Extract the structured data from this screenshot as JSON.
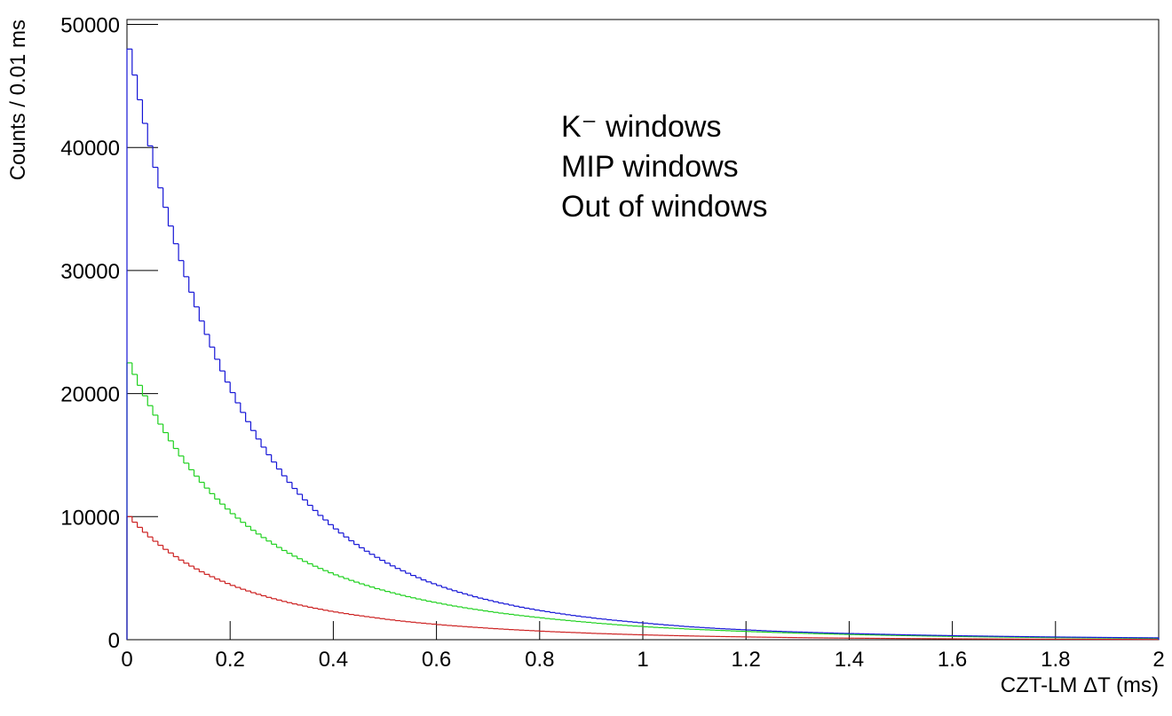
{
  "chart_data": {
    "type": "histogram",
    "x_label": "CZT-LM ΔT (ms)",
    "y_label": "Counts / 0.01 ms",
    "xlim": [
      0,
      2
    ],
    "ylim": [
      0,
      50400
    ],
    "xticks": [
      0,
      0.2,
      0.4,
      0.6,
      0.8,
      1,
      1.2,
      1.4,
      1.6,
      1.8,
      2
    ],
    "yticks": [
      0,
      10000,
      20000,
      30000,
      40000,
      50000
    ],
    "legend": "upper-center",
    "bins": [
      0,
      0.01,
      0.02,
      0.03,
      0.04,
      0.05,
      0.06,
      0.07,
      0.08,
      0.09,
      0.1,
      0.11,
      0.12,
      0.13,
      0.14,
      0.15,
      0.16,
      0.17,
      0.18,
      0.19,
      0.2,
      0.21,
      0.22,
      0.23,
      0.24,
      0.25,
      0.26,
      0.27,
      0.28,
      0.29,
      0.3,
      0.31,
      0.32,
      0.33,
      0.34,
      0.35,
      0.36,
      0.37,
      0.38,
      0.39,
      0.4,
      0.41,
      0.42,
      0.43,
      0.44,
      0.45,
      0.46,
      0.47,
      0.48,
      0.49,
      0.5,
      0.51,
      0.52,
      0.53,
      0.54,
      0.55,
      0.56,
      0.57,
      0.58,
      0.59,
      0.6,
      0.61,
      0.62,
      0.63,
      0.64,
      0.65,
      0.66,
      0.67,
      0.68,
      0.69,
      0.7,
      0.71,
      0.72,
      0.73,
      0.74,
      0.75,
      0.76,
      0.77,
      0.78,
      0.79,
      0.8,
      0.81,
      0.82,
      0.83,
      0.84,
      0.85,
      0.86,
      0.87,
      0.88,
      0.89,
      0.9,
      0.91,
      0.92,
      0.93,
      0.94,
      0.95,
      0.96,
      0.97,
      0.98,
      0.99,
      1,
      1.01,
      1.02,
      1.03,
      1.04,
      1.05,
      1.06,
      1.07,
      1.08,
      1.09,
      1.1,
      1.11,
      1.12,
      1.13,
      1.14,
      1.15,
      1.16,
      1.17,
      1.18,
      1.19,
      1.2,
      1.21,
      1.22,
      1.23,
      1.24,
      1.25,
      1.26,
      1.27,
      1.28,
      1.29,
      1.3,
      1.31,
      1.32,
      1.33,
      1.34,
      1.35,
      1.36,
      1.37,
      1.38,
      1.39,
      1.4,
      1.41,
      1.42,
      1.43,
      1.44,
      1.45,
      1.46,
      1.47,
      1.48,
      1.49,
      1.5,
      1.51,
      1.52,
      1.53,
      1.54,
      1.55,
      1.56,
      1.57,
      1.58,
      1.59,
      1.6,
      1.61,
      1.62,
      1.63,
      1.64,
      1.65,
      1.66,
      1.67,
      1.68,
      1.69,
      1.7,
      1.71,
      1.72,
      1.73,
      1.74,
      1.75,
      1.76,
      1.77,
      1.78,
      1.79,
      1.8,
      1.81,
      1.82,
      1.83,
      1.84,
      1.85,
      1.86,
      1.87,
      1.88,
      1.89,
      1.9,
      1.91,
      1.92,
      1.93,
      1.94,
      1.95,
      1.96,
      1.97,
      1.98,
      1.99,
      2
    ],
    "series": [
      {
        "name": "K⁻ windows",
        "color": "#cc1f1f",
        "values": [
          10000,
          9550,
          9130,
          8730,
          8350,
          8000,
          7670,
          7340,
          7050,
          6750,
          6470,
          6220,
          5980,
          5750,
          5520,
          5310,
          5120,
          4930,
          4750,
          4570,
          4410,
          4250,
          4100,
          3960,
          3820,
          3690,
          3570,
          3440,
          3330,
          3220,
          3110,
          3010,
          2910,
          2820,
          2730,
          2640,
          2555,
          2480,
          2395,
          2320,
          2250,
          2180,
          2120,
          2050,
          1990,
          1935,
          1875,
          1820,
          1765,
          1710,
          1650,
          1605,
          1550,
          1505,
          1460,
          1420,
          1375,
          1340,
          1300,
          1265,
          1225,
          1190,
          1155,
          1125,
          1095,
          1065,
          1035,
          1005,
          980,
          950,
          920,
          895,
          870,
          845,
          820,
          800,
          775,
          755,
          735,
          715,
          690,
          670,
          650,
          635,
          615,
          600,
          585,
          570,
          550,
          535,
          515,
          500,
          490,
          475,
          460,
          450,
          435,
          425,
          410,
          400,
          389,
          378,
          368,
          357,
          348,
          338,
          329,
          320,
          311,
          302,
          293,
          285,
          277,
          270,
          262,
          255,
          248,
          241,
          235,
          228,
          221,
          215,
          209,
          204,
          198,
          193,
          187,
          182,
          177,
          172,
          167,
          163,
          158,
          154,
          150,
          145,
          141,
          137,
          134,
          130,
          126,
          123,
          120,
          116,
          113,
          110,
          107,
          104,
          101,
          98,
          95,
          93,
          90,
          88,
          85,
          83,
          81,
          78,
          76,
          74,
          72,
          70,
          68,
          66,
          64,
          63,
          61,
          59,
          58,
          56,
          54,
          53,
          51,
          50,
          49,
          47,
          46,
          45,
          44,
          42,
          41,
          40,
          39,
          38,
          37,
          36,
          35,
          34,
          33,
          32,
          31,
          30,
          29,
          28,
          28,
          27,
          26,
          25,
          25,
          24
        ]
      },
      {
        "name": "MIP windows",
        "color": "#1fd11f",
        "values": [
          22500,
          21560,
          20670,
          19820,
          19020,
          18250,
          17520,
          16830,
          16160,
          15540,
          14930,
          14350,
          13810,
          13290,
          12790,
          12320,
          11870,
          11430,
          11020,
          10620,
          10240,
          9880,
          9540,
          9210,
          8890,
          8590,
          8300,
          8020,
          7760,
          7500,
          7250,
          7020,
          6790,
          6580,
          6360,
          6170,
          5970,
          5790,
          5610,
          5440,
          5270,
          5120,
          4970,
          4820,
          4680,
          4540,
          4410,
          4280,
          4150,
          4040,
          3920,
          3815,
          3700,
          3600,
          3500,
          3405,
          3310,
          3225,
          3130,
          3050,
          2970,
          2890,
          2810,
          2735,
          2670,
          2595,
          2530,
          2465,
          2405,
          2340,
          2280,
          2220,
          2160,
          2110,
          2060,
          2005,
          1955,
          1910,
          1860,
          1815,
          1770,
          1720,
          1680,
          1640,
          1600,
          1560,
          1520,
          1480,
          1445,
          1410,
          1370,
          1330,
          1300,
          1270,
          1230,
          1200,
          1170,
          1140,
          1110,
          1090,
          1050,
          1030,
          1000,
          980,
          960,
          940,
          920,
          900,
          870,
          850,
          835,
          815,
          800,
          780,
          760,
          745,
          730,
          710,
          695,
          680,
          664,
          650,
          635,
          620,
          605,
          590,
          580,
          565,
          555,
          540,
          527,
          515,
          505,
          490,
          480,
          470,
          460,
          450,
          440,
          430,
          419,
          410,
          400,
          390,
          383,
          374,
          365,
          357,
          349,
          341,
          333,
          326,
          318,
          311,
          304,
          297,
          290,
          284,
          277,
          271,
          264,
          258,
          253,
          247,
          241,
          236,
          231,
          225,
          220,
          215,
          210,
          205,
          201,
          196,
          192,
          187,
          183,
          179,
          175,
          171,
          167,
          163,
          160,
          156,
          153,
          149,
          146,
          143,
          139,
          136,
          133,
          130,
          127,
          124,
          122,
          119,
          116,
          114,
          111,
          109
        ]
      },
      {
        "name": "Out of windows",
        "color": "#1414d6",
        "values": [
          48000,
          45890,
          43880,
          41960,
          40130,
          38390,
          36720,
          35140,
          33620,
          32180,
          30810,
          29500,
          28240,
          27050,
          25900,
          24810,
          23780,
          22790,
          21840,
          20940,
          20080,
          19250,
          18470,
          17720,
          17000,
          16310,
          15650,
          15030,
          14440,
          13870,
          13320,
          12790,
          12290,
          11820,
          11360,
          10920,
          10500,
          10100,
          9730,
          9350,
          9000,
          8670,
          8350,
          8040,
          7740,
          7470,
          7190,
          6940,
          6690,
          6450,
          6220,
          6000,
          5790,
          5600,
          5400,
          5220,
          5040,
          4860,
          4700,
          4550,
          4400,
          4250,
          4110,
          3980,
          3850,
          3730,
          3610,
          3490,
          3380,
          3280,
          3180,
          3080,
          2980,
          2900,
          2810,
          2720,
          2640,
          2560,
          2490,
          2410,
          2345,
          2280,
          2210,
          2150,
          2090,
          2030,
          1970,
          1920,
          1860,
          1820,
          1760,
          1710,
          1670,
          1620,
          1580,
          1540,
          1500,
          1460,
          1420,
          1380,
          1350,
          1310,
          1270,
          1240,
          1200,
          1170,
          1140,
          1100,
          1070,
          1040,
          1015,
          990,
          960,
          940,
          910,
          890,
          870,
          850,
          830,
          810,
          790,
          770,
          750,
          730,
          710,
          690,
          680,
          660,
          650,
          635,
          623,
          610,
          595,
          580,
          570,
          555,
          545,
          530,
          520,
          510,
          500,
          490,
          480,
          470,
          460,
          450,
          440,
          430,
          420,
          410,
          400,
          392,
          384,
          376,
          368,
          360,
          353,
          346,
          339,
          332,
          326,
          320,
          314,
          308,
          302,
          296,
          290,
          284,
          278,
          272,
          267,
          262,
          257,
          252,
          247,
          242,
          237,
          232,
          227,
          222,
          218,
          214,
          210,
          206,
          202,
          198,
          194,
          190,
          186,
          182,
          179,
          176,
          173,
          170,
          167,
          164,
          161,
          158,
          155,
          152
        ]
      }
    ]
  }
}
